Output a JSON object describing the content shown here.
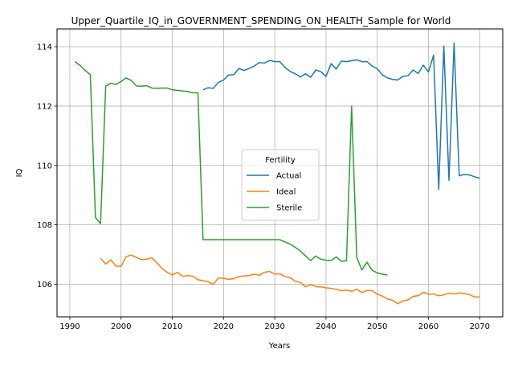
{
  "chart_data": {
    "type": "line",
    "title": "Upper_Quartile_IQ_in_GOVERNMENT_SPENDING_ON_HEALTH_Sample for World",
    "xlabel": "Years",
    "ylabel": "IQ",
    "xlim": [
      1987.5,
      2074.5
    ],
    "ylim": [
      104.9,
      114.6
    ],
    "xticks": [
      1990,
      2000,
      2010,
      2020,
      2030,
      2040,
      2050,
      2060,
      2070
    ],
    "yticks": [
      106,
      108,
      110,
      112,
      114
    ],
    "grid": true,
    "legend": {
      "title": "Fertility",
      "placement": "center"
    },
    "series": [
      {
        "name": "Actual",
        "color": "#1f77b4",
        "x": [
          2016,
          2017,
          2018,
          2019,
          2020,
          2021,
          2022,
          2023,
          2024,
          2025,
          2026,
          2027,
          2028,
          2029,
          2030,
          2031,
          2032,
          2033,
          2034,
          2035,
          2036,
          2037,
          2038,
          2039,
          2040,
          2041,
          2042,
          2043,
          2044,
          2045,
          2046,
          2047,
          2048,
          2049,
          2050,
          2051,
          2052,
          2053,
          2054,
          2055,
          2056,
          2057,
          2058,
          2059,
          2060,
          2061,
          2062,
          2063,
          2064,
          2065,
          2066,
          2067,
          2068,
          2069,
          2070
        ],
        "values": [
          112.55,
          112.62,
          112.6,
          112.8,
          112.88,
          113.05,
          113.06,
          113.27,
          113.2,
          113.27,
          113.35,
          113.47,
          113.45,
          113.54,
          113.5,
          113.5,
          113.3,
          113.17,
          113.09,
          112.98,
          113.09,
          112.97,
          113.22,
          113.16,
          113.0,
          113.43,
          113.25,
          113.52,
          113.5,
          113.53,
          113.56,
          113.5,
          113.5,
          113.35,
          113.26,
          113.05,
          112.95,
          112.9,
          112.88,
          113.0,
          113.02,
          113.22,
          113.1,
          113.38,
          113.15,
          113.72,
          109.2,
          114.02,
          109.5,
          114.13,
          109.65,
          109.7,
          109.68,
          109.62,
          109.57
        ]
      },
      {
        "name": "Ideal",
        "color": "#ff7f0e",
        "x": [
          1996,
          1997,
          1998,
          1999,
          2000,
          2001,
          2002,
          2003,
          2004,
          2005,
          2006,
          2007,
          2008,
          2009,
          2010,
          2011,
          2012,
          2013,
          2014,
          2015,
          2016,
          2017,
          2018,
          2019,
          2020,
          2021,
          2022,
          2023,
          2024,
          2025,
          2026,
          2027,
          2028,
          2029,
          2030,
          2031,
          2032,
          2033,
          2034,
          2035,
          2036,
          2037,
          2038,
          2039,
          2040,
          2041,
          2042,
          2043,
          2044,
          2045,
          2046,
          2047,
          2048,
          2049,
          2050,
          2051,
          2052,
          2053,
          2054,
          2055,
          2056,
          2057,
          2058,
          2059,
          2060,
          2061,
          2062,
          2063,
          2064,
          2065,
          2066,
          2067,
          2068,
          2069,
          2070
        ],
        "values": [
          106.87,
          106.68,
          106.82,
          106.61,
          106.6,
          106.93,
          106.98,
          106.9,
          106.83,
          106.84,
          106.89,
          106.72,
          106.53,
          106.4,
          106.31,
          106.4,
          106.27,
          106.29,
          106.27,
          106.15,
          106.12,
          106.08,
          105.99,
          106.21,
          106.2,
          106.16,
          106.19,
          106.26,
          106.28,
          106.29,
          106.34,
          106.3,
          106.4,
          106.43,
          106.34,
          106.35,
          106.26,
          106.22,
          106.1,
          106.06,
          105.91,
          105.99,
          105.92,
          105.91,
          105.88,
          105.86,
          105.83,
          105.78,
          105.8,
          105.76,
          105.83,
          105.72,
          105.79,
          105.78,
          105.67,
          105.6,
          105.5,
          105.46,
          105.34,
          105.44,
          105.47,
          105.59,
          105.61,
          105.73,
          105.66,
          105.67,
          105.61,
          105.64,
          105.7,
          105.67,
          105.71,
          105.68,
          105.65,
          105.57,
          105.57
        ]
      },
      {
        "name": "Sterile",
        "color": "#2ca02c",
        "x": [
          1991,
          1992,
          1993,
          1994,
          1995,
          1996,
          1997,
          1998,
          1999,
          2000,
          2001,
          2002,
          2003,
          2004,
          2005,
          2006,
          2007,
          2008,
          2009,
          2010,
          2011,
          2012,
          2013,
          2014,
          2015,
          2016,
          2017,
          2018,
          2019,
          2020,
          2021,
          2022,
          2023,
          2024,
          2025,
          2026,
          2027,
          2028,
          2029,
          2030,
          2031,
          2032,
          2033,
          2034,
          2035,
          2036,
          2037,
          2038,
          2039,
          2040,
          2041,
          2042,
          2043,
          2044,
          2045,
          2046,
          2047,
          2048,
          2049,
          2050,
          2051,
          2052
        ],
        "values": [
          113.5,
          113.37,
          113.2,
          113.06,
          108.25,
          108.04,
          112.67,
          112.77,
          112.73,
          112.83,
          112.95,
          112.86,
          112.68,
          112.67,
          112.69,
          112.61,
          112.6,
          112.61,
          112.61,
          112.55,
          112.53,
          112.51,
          112.49,
          112.45,
          112.45,
          107.5,
          107.5,
          107.5,
          107.5,
          107.5,
          107.5,
          107.5,
          107.5,
          107.5,
          107.5,
          107.5,
          107.5,
          107.5,
          107.5,
          107.5,
          107.5,
          107.42,
          107.35,
          107.24,
          107.12,
          106.95,
          106.8,
          106.95,
          106.84,
          106.81,
          106.8,
          106.92,
          106.77,
          106.79,
          112.0,
          106.9,
          106.48,
          106.74,
          106.47,
          106.38,
          106.34,
          106.31
        ]
      }
    ]
  }
}
